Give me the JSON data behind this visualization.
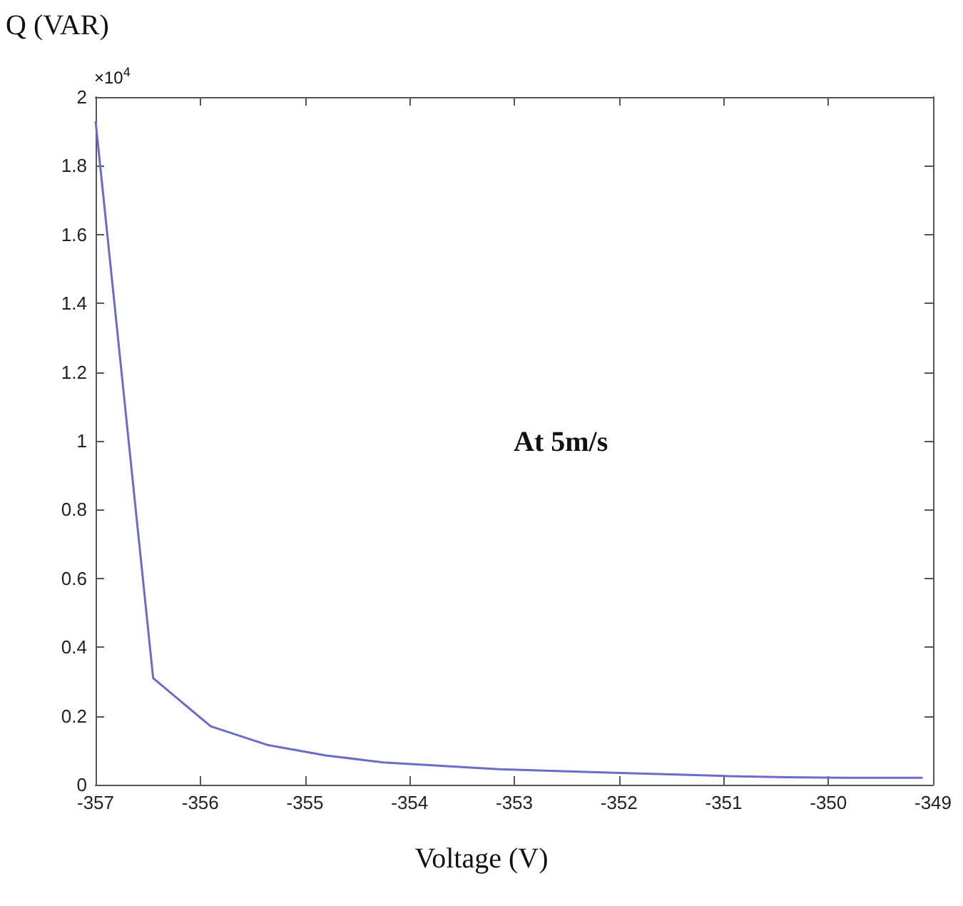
{
  "chart_data": {
    "type": "line",
    "xlabel": "Voltage (V)",
    "ylabel": "Q (VAR)",
    "annotations": [
      "×10$^{4}$",
      "At 5m/s"
    ],
    "x": [
      -357,
      -356.45,
      -355.9,
      -355.35,
      -354.8,
      -354.25,
      -353.7,
      -353.15,
      -352.6,
      -352.05,
      -351.5,
      -350.95,
      -350.4,
      -349.85,
      -349.1
    ],
    "series": [
      {
        "color": "#6b6bc8",
        "values": [
          1.93,
          0.31,
          0.17,
          0.115,
          0.085,
          0.065,
          0.055,
          0.045,
          0.04,
          0.035,
          0.03,
          0.025,
          0.022,
          0.02,
          0.02
        ]
      }
    ],
    "xlim": [
      -357,
      -349
    ],
    "xticks": [
      -357,
      -356,
      -355,
      -354,
      -353,
      -352,
      -351,
      -350,
      -349
    ],
    "ylim": [
      0,
      2
    ],
    "yticks": [
      0,
      0.2,
      0.4,
      0.6,
      0.8,
      1,
      1.2,
      1.4,
      1.6,
      1.8,
      2
    ],
    "grid": false,
    "marker": "none",
    "line_style": "solid"
  }
}
